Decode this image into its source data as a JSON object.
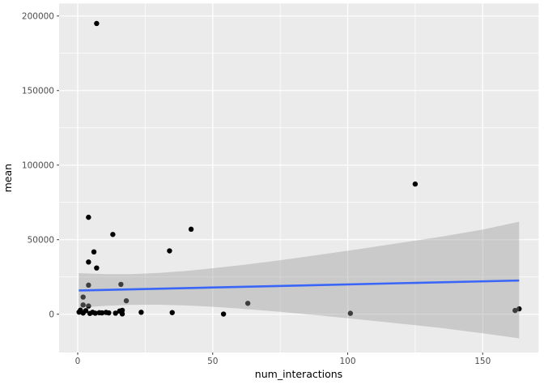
{
  "figure": {
    "background": "#FFFFFF",
    "panel_background": "#EBEBEB",
    "grid_color": "#FFFFFF",
    "tick_mark_color": "#333333",
    "axis_text_color": "#4D4D4D",
    "axis_title_color": "#000000",
    "point_color": "#000000",
    "smooth_line_color": "#3A66F8",
    "ribbon_color": "#999999",
    "ribbon_opacity": 0.4
  },
  "chart_data": {
    "type": "scatter",
    "title": "",
    "xlabel": "num_interactions",
    "ylabel": "mean",
    "grid": true,
    "legend": null,
    "x_axis": {
      "ticks": [
        0,
        50,
        100,
        150
      ],
      "tick_labels": [
        "0",
        "50",
        "100",
        "150"
      ],
      "minor_ticks": [
        25,
        75,
        125
      ],
      "range": [
        -6.9,
        170.7
      ]
    },
    "y_axis": {
      "ticks": [
        0,
        50000,
        100000,
        150000,
        200000
      ],
      "tick_labels": [
        "0",
        "50000",
        "100000",
        "150000",
        "200000"
      ],
      "minor_ticks": [
        25000,
        75000,
        125000,
        175000
      ],
      "range": [
        -25700,
        208400
      ]
    },
    "points": [
      [
        7,
        195000
      ],
      [
        125,
        87300
      ],
      [
        4,
        65000
      ],
      [
        42,
        57000
      ],
      [
        13,
        53500
      ],
      [
        34,
        42500
      ],
      [
        6,
        41800
      ],
      [
        4,
        35000
      ],
      [
        7,
        31000
      ],
      [
        16,
        20000
      ],
      [
        4,
        19500
      ],
      [
        2,
        11500
      ],
      [
        18,
        9000
      ],
      [
        63,
        7300
      ],
      [
        2,
        6200
      ],
      [
        4,
        5500
      ],
      [
        0.5,
        1400
      ],
      [
        1,
        2700
      ],
      [
        2,
        800
      ],
      [
        3,
        2400
      ],
      [
        4.5,
        500
      ],
      [
        5.5,
        1300
      ],
      [
        6.5,
        700
      ],
      [
        8,
        1000
      ],
      [
        9,
        900
      ],
      [
        10.5,
        1200
      ],
      [
        11.5,
        900
      ],
      [
        14,
        700
      ],
      [
        15.5,
        2100
      ],
      [
        16.5,
        2600
      ],
      [
        16.5,
        200
      ],
      [
        23.5,
        1300
      ],
      [
        35,
        1100
      ],
      [
        54,
        100
      ],
      [
        101,
        600
      ],
      [
        162,
        2500
      ],
      [
        163.5,
        3600
      ]
    ],
    "smooth_line": {
      "x": [
        0.4,
        163.5
      ],
      "y": [
        15900,
        22600
      ]
    },
    "ribbon": {
      "x": [
        0.4,
        10,
        20,
        30,
        40,
        50,
        60,
        75,
        90,
        105,
        120,
        135,
        150,
        163.5
      ],
      "upper": [
        27600,
        26900,
        26900,
        27700,
        29000,
        30800,
        32800,
        36200,
        40000,
        43900,
        48000,
        52100,
        56800,
        62000
      ],
      "lower": [
        4300,
        5600,
        6300,
        6400,
        5900,
        5000,
        3800,
        1600,
        -900,
        -3600,
        -6400,
        -9300,
        -12800,
        -16200
      ]
    }
  }
}
